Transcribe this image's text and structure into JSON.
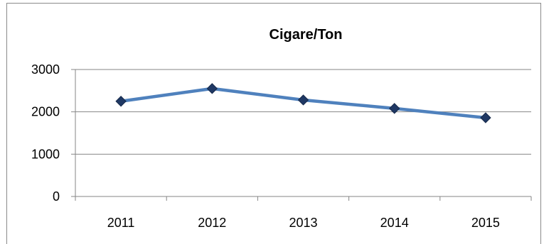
{
  "chart_data": {
    "type": "line",
    "title": "Cigare/Ton",
    "xlabel": "",
    "ylabel": "",
    "categories": [
      "2011",
      "2012",
      "2013",
      "2014",
      "2015"
    ],
    "series": [
      {
        "values": [
          2250,
          2550,
          2280,
          2080,
          1860
        ]
      }
    ],
    "ylim": [
      0,
      3000
    ],
    "yticks": [
      0,
      1000,
      2000,
      3000
    ],
    "ytick_labels": [
      "0",
      "1000",
      "2000",
      "3000"
    ],
    "grid": true,
    "legend": "none",
    "colors": {
      "line": "#4f81bd",
      "marker": "#1f3864",
      "grid": "#868686"
    }
  }
}
